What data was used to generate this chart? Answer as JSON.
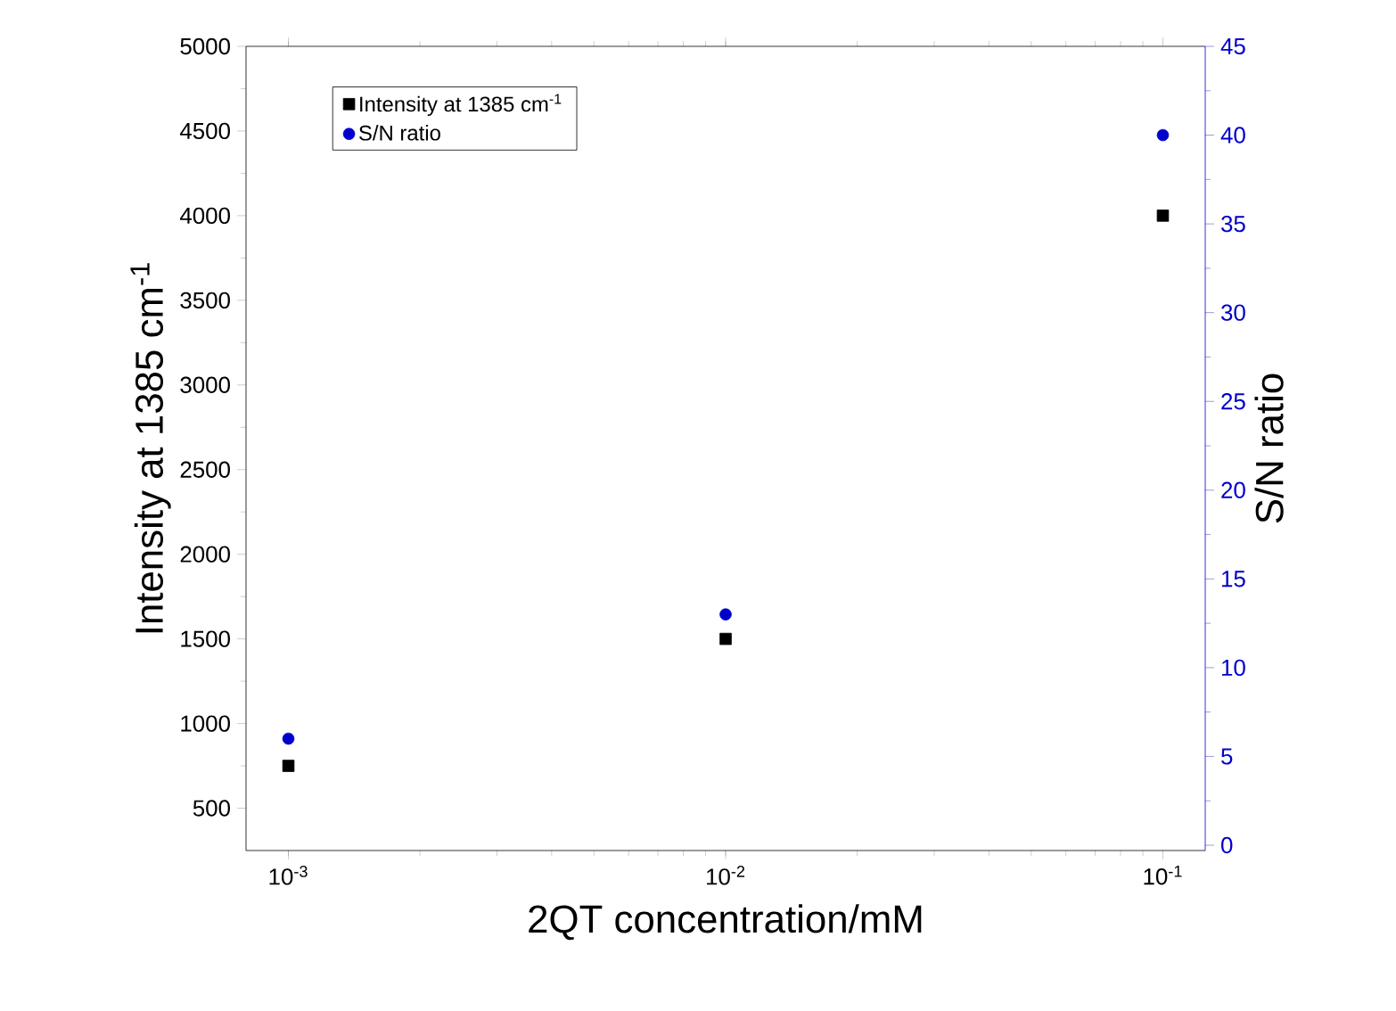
{
  "chart_data": {
    "type": "scatter",
    "xlabel": "2QT concentration/mM",
    "ylabel": "Intensity at 1385 cm$^{-1}$",
    "y2label": "S/N ratio",
    "x": [
      0.001,
      0.01,
      0.1
    ],
    "series": [
      {
        "name": "Intensity at 1385 cm$^{-1}$",
        "color": "#000000",
        "marker": "square",
        "values": [
          750,
          1500,
          4000
        ]
      },
      {
        "name": "S/N ratio",
        "color": "#0000cc",
        "marker": "circle",
        "axis": "y2",
        "values": [
          6,
          13,
          40
        ]
      }
    ],
    "log": "x",
    "xlim": [
      0.0008,
      0.125
    ],
    "xticks": [
      {
        "value": 0.001,
        "label": "10$^{-3}$"
      },
      {
        "value": 0.01,
        "label": "10$^{-2}$"
      },
      {
        "value": 0.1,
        "label": "10$^{-1}$"
      }
    ],
    "ylim": [
      250,
      5000
    ],
    "yticks": [
      500,
      1000,
      1500,
      2000,
      2500,
      3000,
      3500,
      4000,
      4500,
      5000
    ],
    "y2lim": [
      -0.3,
      45
    ],
    "y2ticks": [
      0,
      5,
      10,
      15,
      20,
      25,
      30,
      35,
      40,
      45
    ],
    "grid": false,
    "legend": "top left"
  }
}
